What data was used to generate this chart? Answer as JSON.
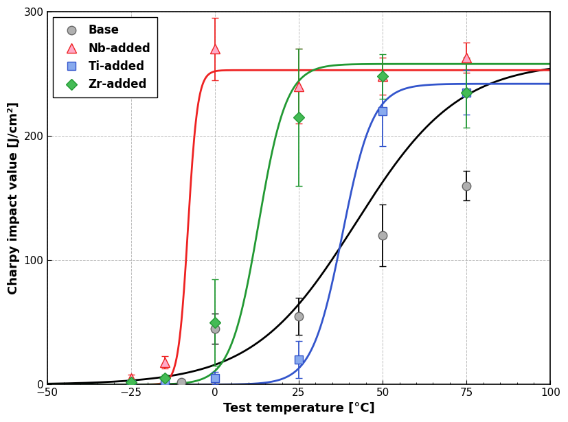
{
  "title": "",
  "xlabel": "Test temperature [°C]",
  "ylabel": "Charpy impact value [J/cm²]",
  "xlim": [
    -50,
    100
  ],
  "ylim": [
    0,
    300
  ],
  "xticks": [
    -50,
    -25,
    0,
    25,
    50,
    75,
    100
  ],
  "yticks": [
    0,
    100,
    200,
    300
  ],
  "series": {
    "Base": {
      "line_color": "#000000",
      "marker": "o",
      "marker_face": "#b0b0b0",
      "marker_edge": "#666666",
      "points": [
        [
          -25,
          0
        ],
        [
          -10,
          2
        ],
        [
          0,
          45
        ],
        [
          25,
          55
        ],
        [
          50,
          120
        ],
        [
          75,
          160
        ]
      ],
      "errors": [
        2,
        2,
        12,
        15,
        25,
        12
      ],
      "sigmoid": {
        "x0": 42,
        "k": 0.065,
        "ymax": 260,
        "ymin": 0
      }
    },
    "Nb-added": {
      "line_color": "#ee2222",
      "marker": "^",
      "marker_face": "#ffaac8",
      "marker_edge": "#ee2222",
      "points": [
        [
          -25,
          5
        ],
        [
          -15,
          18
        ],
        [
          0,
          270
        ],
        [
          25,
          240
        ],
        [
          50,
          248
        ],
        [
          75,
          263
        ]
      ],
      "errors": [
        3,
        5,
        25,
        30,
        15,
        12
      ],
      "sigmoid": {
        "x0": -8,
        "k": 0.7,
        "ymax": 253,
        "ymin": 0
      }
    },
    "Ti-added": {
      "line_color": "#3355cc",
      "marker": "s",
      "marker_face": "#88aaee",
      "marker_edge": "#3355cc",
      "points": [
        [
          -25,
          0
        ],
        [
          -15,
          3
        ],
        [
          0,
          5
        ],
        [
          25,
          20
        ],
        [
          50,
          220
        ],
        [
          75,
          235
        ]
      ],
      "errors": [
        2,
        2,
        5,
        15,
        28,
        18
      ],
      "sigmoid": {
        "x0": 38,
        "k": 0.22,
        "ymax": 242,
        "ymin": 0
      }
    },
    "Zr-added": {
      "line_color": "#229933",
      "marker": "D",
      "marker_face": "#44bb55",
      "marker_edge": "#229933",
      "points": [
        [
          -25,
          2
        ],
        [
          -15,
          5
        ],
        [
          0,
          50
        ],
        [
          25,
          215
        ],
        [
          50,
          248
        ],
        [
          75,
          235
        ]
      ],
      "errors": [
        2,
        3,
        35,
        55,
        18,
        28
      ],
      "sigmoid": {
        "x0": 13,
        "k": 0.24,
        "ymax": 258,
        "ymin": 0
      }
    }
  },
  "legend_order": [
    "Base",
    "Nb-added",
    "Ti-added",
    "Zr-added"
  ],
  "figsize": [
    8.27,
    6.15
  ],
  "dpi": 100
}
